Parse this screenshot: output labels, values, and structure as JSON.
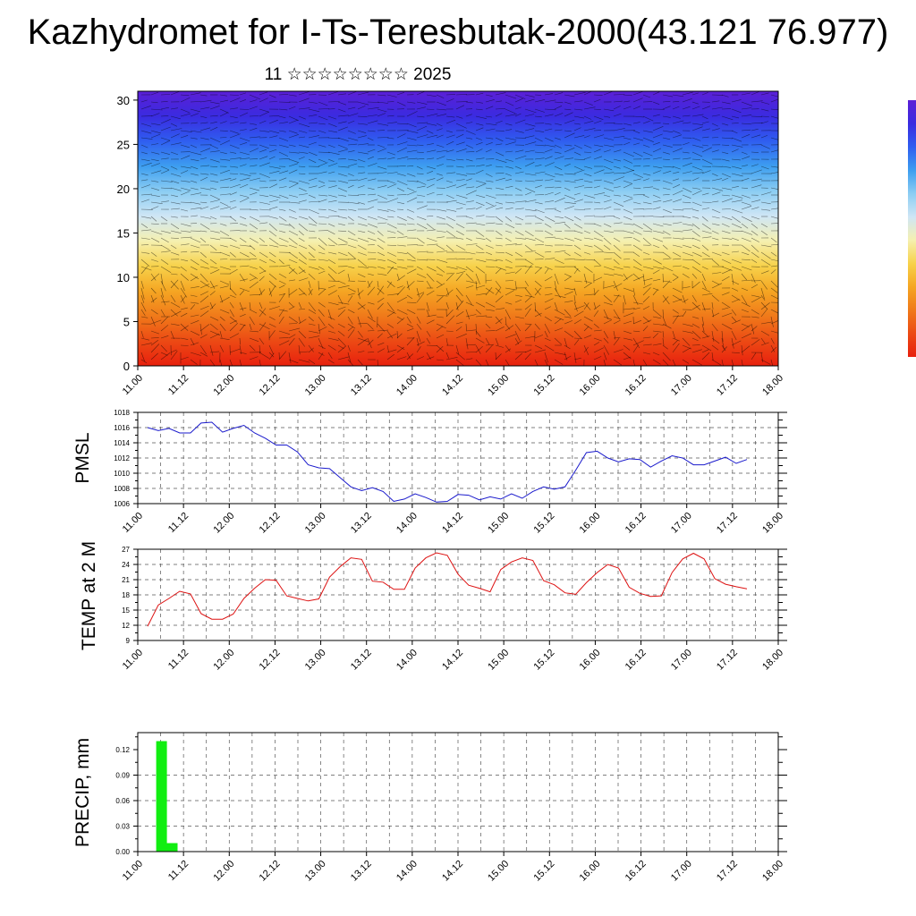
{
  "header": {
    "title": "Kazhydromet for I-Ts-Teresbutak-2000(43.121 76.977)",
    "subtitle": "11 ☆☆☆☆☆☆☆☆ 2025"
  },
  "time_ticks": [
    "11.00",
    "11.12",
    "12.00",
    "12.12",
    "13.00",
    "13.12",
    "14.00",
    "14.12",
    "15.00",
    "15.12",
    "16.00",
    "16.12",
    "17.00",
    "17.12",
    "18.00"
  ],
  "chart_data": [
    {
      "type": "heatmap",
      "ylim": [
        0,
        31
      ],
      "yticks": [
        "0",
        "5",
        "10",
        "15",
        "20",
        "25",
        "30"
      ],
      "colormap": [
        "#5b1fd6",
        "#3a2be0",
        "#2f5ef0",
        "#3d9ef0",
        "#8ccdf3",
        "#cfe6f5",
        "#f5f0b0",
        "#f7d24b",
        "#f5a623",
        "#f07a1a",
        "#ec4a14",
        "#e8200e"
      ],
      "description_colors": {
        "low_levels": "#e8200e",
        "high_levels": "#5b1fd6"
      }
    },
    {
      "type": "line",
      "ylabel": "PMSL",
      "color": "#1a1acc",
      "ylim": [
        1006,
        1018
      ],
      "yticks": [
        "1006",
        "1008",
        "1010",
        "1012",
        "1014",
        "1016",
        "1018"
      ],
      "values": [
        1016,
        1015.6,
        1015.9,
        1015.3,
        1015.3,
        1016.6,
        1016.7,
        1015.4,
        1015.9,
        1016.3,
        1015.3,
        1014.6,
        1013.7,
        1013.7,
        1012.8,
        1011.1,
        1010.7,
        1010.6,
        1009.4,
        1008.2,
        1007.7,
        1008.1,
        1007.6,
        1006.3,
        1006.6,
        1007.3,
        1006.8,
        1006.2,
        1006.3,
        1007.2,
        1007.1,
        1006.5,
        1006.9,
        1006.6,
        1007.3,
        1006.7,
        1007.6,
        1008.2,
        1007.9,
        1008.2,
        1010.4,
        1012.7,
        1012.9,
        1012,
        1011.5,
        1011.9,
        1011.8,
        1010.8,
        1011.6,
        1012.3,
        1012,
        1011.1,
        1011.1,
        1011.6,
        1012.1,
        1011.3,
        1011.8
      ]
    },
    {
      "type": "line",
      "ylabel": "TEMP at 2 M",
      "color": "#dd1111",
      "ylim": [
        9,
        27
      ],
      "yticks": [
        "9",
        "12",
        "15",
        "18",
        "21",
        "24",
        "27"
      ],
      "values": [
        11.8,
        16,
        17.3,
        18.7,
        18.2,
        14.3,
        13.2,
        13.2,
        14.2,
        17.3,
        19.3,
        21,
        20.9,
        17.8,
        17.3,
        16.8,
        17.2,
        21.5,
        23.6,
        25.3,
        25,
        20.7,
        20.5,
        19.1,
        19.1,
        23.3,
        25.3,
        26.3,
        25.8,
        22.1,
        19.9,
        19.3,
        18.6,
        23,
        24.5,
        25.3,
        24.8,
        20.8,
        20,
        18.4,
        18.1,
        20.4,
        22.4,
        24,
        23.3,
        19.5,
        18.3,
        17.7,
        17.8,
        22.4,
        25.1,
        26.2,
        25.1,
        21.2,
        20.1,
        19.6,
        19.2
      ]
    },
    {
      "type": "bar",
      "ylabel": "PRECIP, mm",
      "color": "#11ee11",
      "ylim": [
        0,
        0.14
      ],
      "yticks": [
        "0.00",
        "0.03",
        "0.06",
        "0.09",
        "0.12"
      ],
      "values": [
        0,
        0.13,
        0.01,
        0,
        0,
        0,
        0,
        0,
        0,
        0,
        0,
        0,
        0,
        0,
        0,
        0,
        0,
        0,
        0,
        0,
        0,
        0,
        0,
        0,
        0,
        0,
        0,
        0,
        0,
        0,
        0,
        0,
        0,
        0,
        0,
        0,
        0,
        0,
        0,
        0,
        0,
        0,
        0,
        0,
        0,
        0,
        0,
        0,
        0,
        0,
        0,
        0,
        0,
        0,
        0,
        0,
        0
      ]
    }
  ]
}
